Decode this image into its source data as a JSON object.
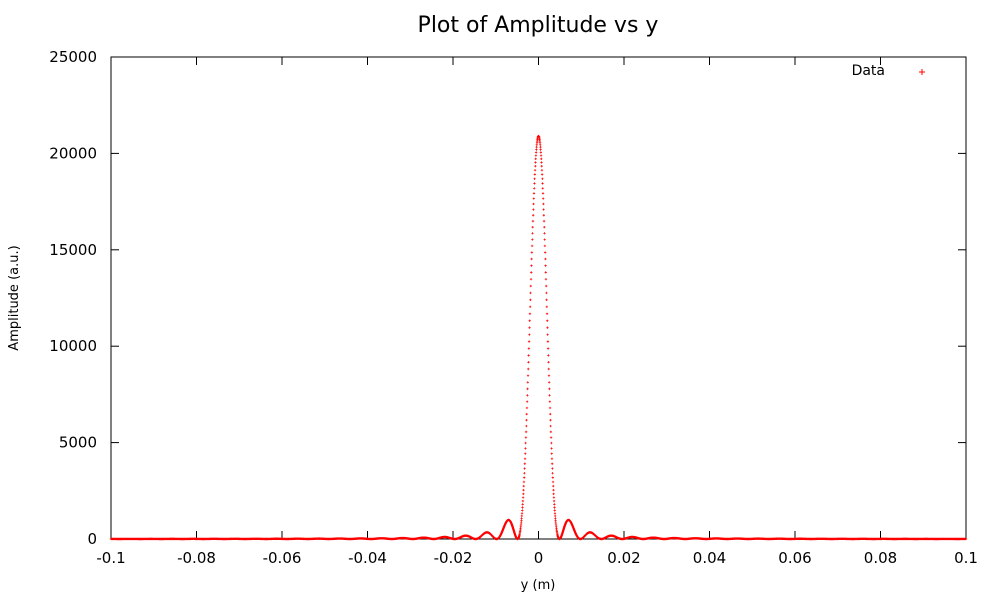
{
  "chart_data": {
    "type": "scatter",
    "title": "Plot of Amplitude vs y",
    "xlabel": "y (m)",
    "ylabel": "Amplitude (a.u.)",
    "xlim": [
      -0.1,
      0.1
    ],
    "ylim": [
      0,
      25000
    ],
    "xticks": [
      -0.1,
      -0.08,
      -0.06,
      -0.04,
      -0.02,
      0,
      0.02,
      0.04,
      0.06,
      0.08,
      0.1
    ],
    "xtick_labels": [
      "-0.1",
      "-0.08",
      "-0.06",
      "-0.04",
      "-0.02",
      "0",
      "0.02",
      "0.04",
      "0.06",
      "0.08",
      "0.1"
    ],
    "yticks": [
      0,
      5000,
      10000,
      15000,
      20000,
      25000
    ],
    "ytick_labels": [
      "0",
      "5000",
      "10000",
      "15000",
      "20000",
      "25000"
    ],
    "grid": false,
    "legend_position": "top-right",
    "series": [
      {
        "name": "Data",
        "color": "#ff0000",
        "marker": "+",
        "function": "sinc-squared",
        "peak": 20900,
        "zero_spacing": 0.0049,
        "x_start": -0.1,
        "x_end": 0.1,
        "point_count": 4001
      }
    ]
  }
}
